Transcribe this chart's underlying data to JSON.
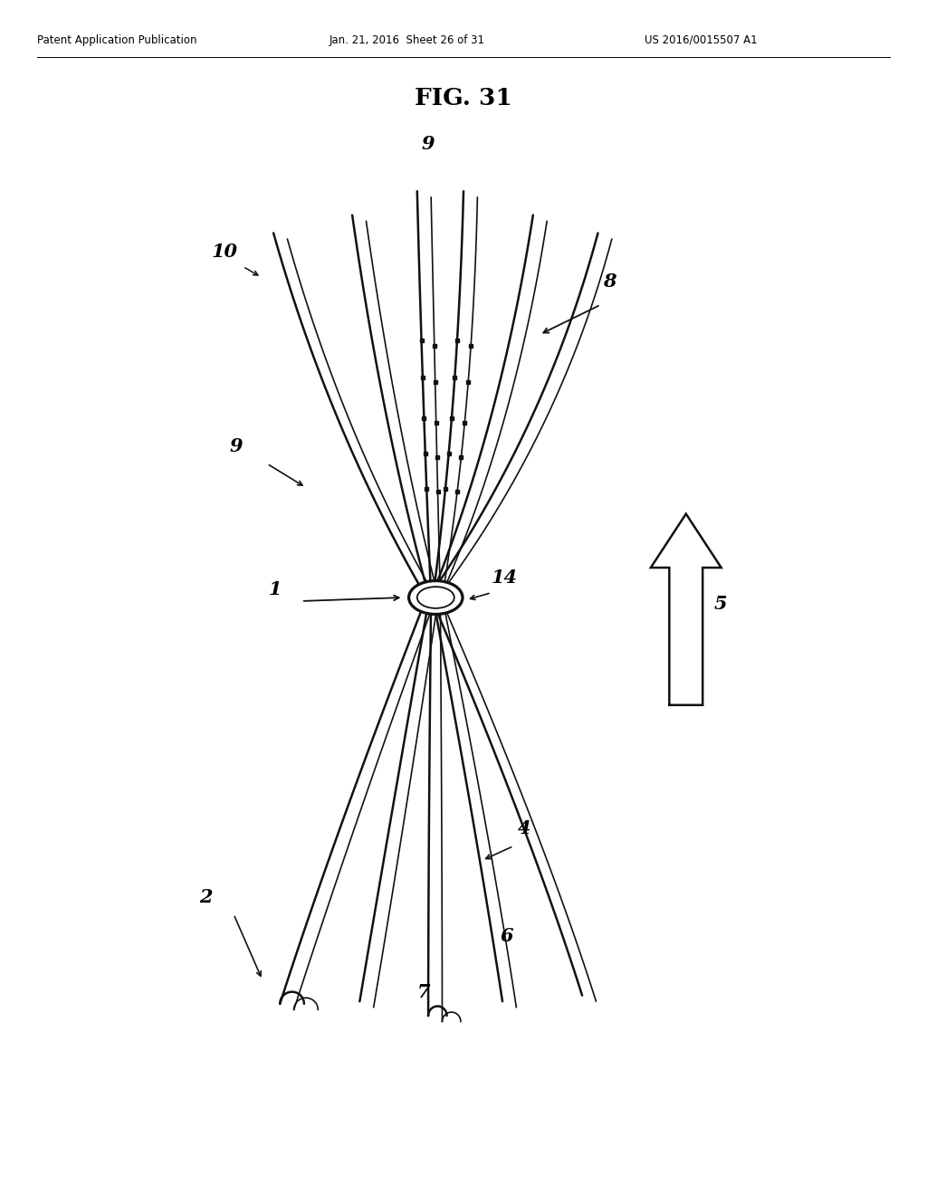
{
  "bg_color": "#ffffff",
  "header_left": "Patent Application Publication",
  "header_mid": "Jan. 21, 2016  Sheet 26 of 31",
  "header_right": "US 2016/0015507 A1",
  "fig_label": "FIG. 31",
  "line_color": "#111111",
  "wx": 0.47,
  "wy": 0.5
}
